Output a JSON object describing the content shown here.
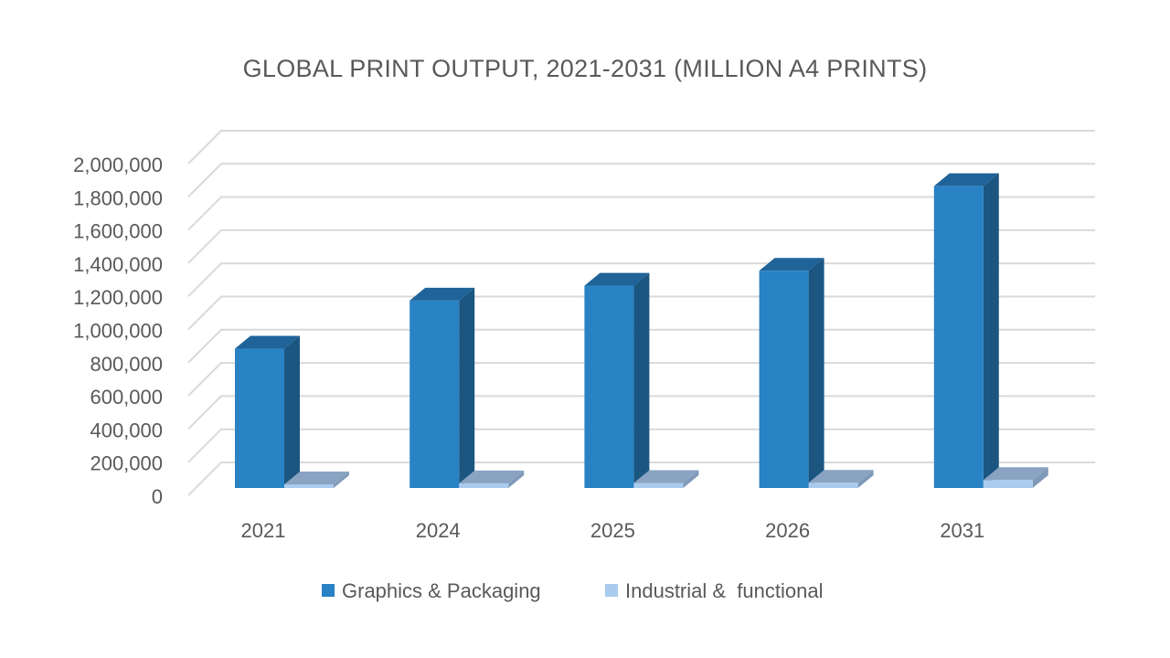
{
  "chart_data": {
    "type": "bar",
    "title": "GLOBAL PRINT OUTPUT, 2021-2031 (MILLION A4 PRINTS)",
    "xlabel": "",
    "ylabel": "",
    "categories": [
      "2021",
      "2024",
      "2025",
      "2026",
      "2031"
    ],
    "series": [
      {
        "name": "Graphics & Packaging",
        "values": [
          840000,
          1130000,
          1220000,
          1310000,
          1820000
        ],
        "color": "#2982C4"
      },
      {
        "name": "Industrial &  functional",
        "values": [
          20000,
          28000,
          30000,
          32000,
          48000
        ],
        "color": "#A9CBEE"
      }
    ],
    "ylim": [
      0,
      2000000
    ],
    "y_ticks": [
      "0",
      "200,000",
      "400,000",
      "600,000",
      "800,000",
      "1,000,000",
      "1,200,000",
      "1,400,000",
      "1,600,000",
      "1,800,000",
      "2,000,000"
    ],
    "grid": true,
    "three_d": true,
    "legend_position": "bottom"
  }
}
